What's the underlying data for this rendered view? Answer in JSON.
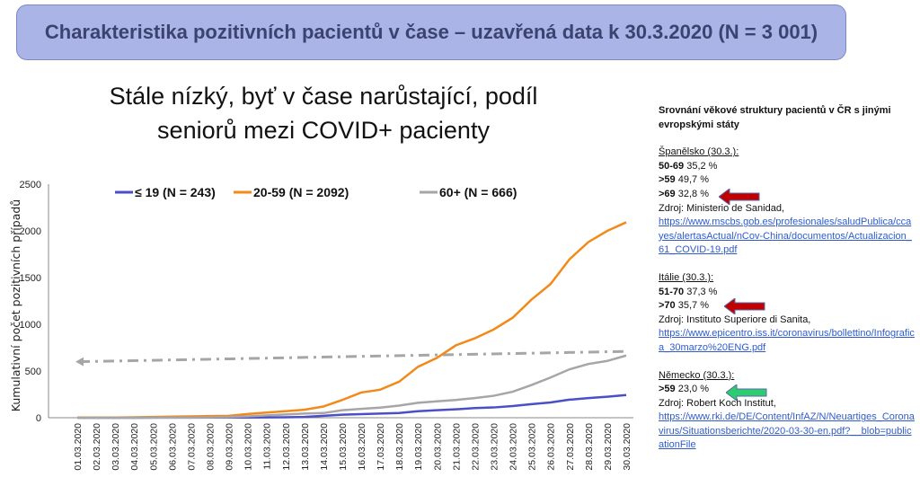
{
  "header": {
    "title": "Charakteristika pozitivních pacientů v čase – uzavřená data k 30.3.2020 (N = 3 001)"
  },
  "slide_title": [
    "Stále nízký, byť v čase narůstající, podíl",
    "seniorů mezi COVID+ pacienty"
  ],
  "chart_data": {
    "type": "line",
    "title": "Stále nízký, byť v čase narůstající, podíl seniorů mezi COVID+ pacienty",
    "xlabel": "",
    "ylabel": "Kumulativní počet pozitivních případů",
    "ylim": [
      0,
      2500
    ],
    "yticks": [
      "0",
      "500",
      "1000",
      "1500",
      "2000",
      "2500"
    ],
    "legend_position": "top",
    "x": [
      "01.03.2020",
      "02.03.2020",
      "03.03.2020",
      "04.03.2020",
      "05.03.2020",
      "06.03.2020",
      "07.03.2020",
      "08.03.2020",
      "09.03.2020",
      "10.03.2020",
      "11.03.2020",
      "12.03.2020",
      "13.03.2020",
      "14.03.2020",
      "15.03.2020",
      "16.03.2020",
      "17.03.2020",
      "18.03.2020",
      "19.03.2020",
      "20.03.2020",
      "21.03.2020",
      "22.03.2020",
      "23.03.2020",
      "24.03.2020",
      "25.03.2020",
      "26.03.2020",
      "27.03.2020",
      "28.03.2020",
      "29.03.2020",
      "30.03.2020"
    ],
    "series": [
      {
        "name": "≤ 19 (N = 243)",
        "color": "#4a4fc8",
        "values": [
          0,
          0,
          0,
          0,
          1,
          1,
          1,
          2,
          2,
          3,
          4,
          5,
          8,
          20,
          33,
          38,
          44,
          50,
          70,
          80,
          90,
          103,
          110,
          125,
          145,
          163,
          193,
          210,
          225,
          243
        ]
      },
      {
        "name": "20-59 (N = 2092)",
        "color": "#f28a1a",
        "values": [
          3,
          3,
          3,
          5,
          8,
          12,
          15,
          18,
          20,
          40,
          55,
          70,
          85,
          120,
          190,
          270,
          300,
          385,
          545,
          640,
          775,
          850,
          945,
          1070,
          1265,
          1430,
          1695,
          1880,
          2000,
          2092
        ]
      },
      {
        "name": "60+ (N = 666)",
        "color": "#a6a6a6",
        "values": [
          0,
          0,
          0,
          0,
          1,
          2,
          3,
          5,
          7,
          15,
          25,
          35,
          45,
          50,
          80,
          95,
          108,
          130,
          160,
          175,
          190,
          210,
          235,
          278,
          350,
          430,
          518,
          575,
          608,
          666
        ]
      }
    ],
    "trend_line": {
      "style": "dash-dot arrow",
      "color": "#a6a6a6",
      "from": 600,
      "to": 710
    }
  },
  "side": {
    "heading": "Srovnání věkové struktury pacientů v ČR s jinými evropskými státy",
    "spain": {
      "title": "Španělsko (30.3.):",
      "rows": [
        [
          "50-69",
          "35,2 %"
        ],
        [
          ">59",
          "49,7 %"
        ],
        [
          ">69",
          "32,8 %"
        ]
      ],
      "source": "Zdroj: Ministerio de Sanidad,",
      "link": "https://www.mscbs.gob.es/profesionales/saludPublica/ccayes/alertasActual/nCov-China/documentos/Actualizacion_61_COVID-19.pdf"
    },
    "italy": {
      "title": "Itálie (30.3.):",
      "rows": [
        [
          "51-70",
          "37,3 %"
        ],
        [
          ">70",
          "35,7 %"
        ]
      ],
      "source": "Zdroj: Instituto Superiore di Sanita,",
      "link": "https://www.epicentro.iss.it/coronavirus/bollettino/Infografica_30marzo%20ENG.pdf"
    },
    "germany": {
      "title": "Německo (30.3.):",
      "rows": [
        [
          ">59",
          "23,0 %"
        ]
      ],
      "source": "Zdroj: Robert Koch Institut,",
      "link": "https://www.rki.de/DE/Content/InfAZ/N/Neuartiges_Coronavirus/Situationsberichte/2020-03-30-en.pdf?__blob=publicationFile"
    },
    "arrow_colors": {
      "red": "#c00000",
      "green": "#2ecc71"
    }
  }
}
